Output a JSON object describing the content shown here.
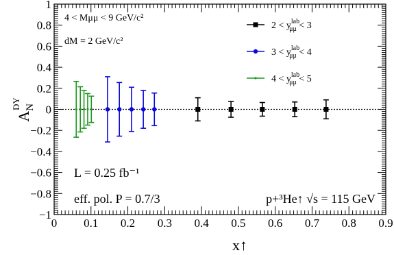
{
  "chart_data": {
    "type": "scatter",
    "xlabel": "x↑",
    "ylabel_main": "A",
    "ylabel_sub": "N",
    "ylabel_sup": "DY",
    "xlim": [
      0,
      0.9
    ],
    "ylim": [
      -1,
      1
    ],
    "x_ticks": [
      "0",
      "0.1",
      "0.2",
      "0.3",
      "0.4",
      "0.5",
      "0.6",
      "0.7",
      "0.8",
      "0.9"
    ],
    "y_ticks": [
      "−1",
      "−0.8",
      "−0.6",
      "−0.4",
      "−0.2",
      "0",
      "0.2",
      "0.4",
      "0.6",
      "0.8",
      "1"
    ],
    "reference_line": {
      "y": 0,
      "style": "dotted"
    },
    "annotations": {
      "mass_range": "4 < Mμμ < 9 GeV/c²",
      "mass_bin": "dM = 2 GeV/c²",
      "lumi": "L = 0.25 fb⁻¹",
      "polarization": "eff. pol. P = 0.7/3",
      "beam": "p+³He↑ √s = 115 GeV"
    },
    "legend_position": "top-right",
    "series": [
      {
        "name": "2 < y^lab_μμ < 3",
        "color": "#000000",
        "marker": "square",
        "x": [
          0.39,
          0.48,
          0.565,
          0.653,
          0.738
        ],
        "y": [
          0,
          0,
          0,
          0,
          0
        ],
        "err": [
          0.11,
          0.075,
          0.065,
          0.07,
          0.09
        ]
      },
      {
        "name": "3 < y^lab_μμ < 4",
        "color": "#0a0adc",
        "marker": "circle",
        "x": [
          0.145,
          0.177,
          0.21,
          0.242,
          0.272
        ],
        "y": [
          0,
          0,
          0,
          0,
          0
        ],
        "err": [
          0.31,
          0.255,
          0.21,
          0.18,
          0.155
        ]
      },
      {
        "name": "4 < y^lab_μμ < 5",
        "color": "#1e961e",
        "marker": "cross",
        "x": [
          0.06,
          0.071,
          0.081,
          0.091,
          0.101
        ],
        "y": [
          0,
          0,
          0,
          0,
          0
        ],
        "err": [
          0.265,
          0.215,
          0.18,
          0.15,
          0.125
        ]
      }
    ]
  }
}
